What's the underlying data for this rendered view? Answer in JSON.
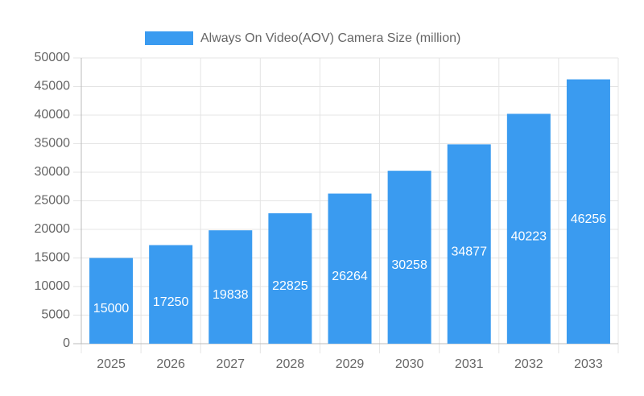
{
  "chart_data": {
    "type": "bar",
    "categories": [
      "2025",
      "2026",
      "2027",
      "2028",
      "2029",
      "2030",
      "2031",
      "2032",
      "2033"
    ],
    "series": [
      {
        "name": "Always On Video(AOV) Camera Size (million)",
        "color": "#3a9bf0",
        "values": [
          15000,
          17250,
          19838,
          22825,
          26264,
          30258,
          34877,
          40223,
          46256
        ]
      }
    ],
    "ylim": [
      0,
      50000
    ],
    "yticks": [
      0,
      5000,
      10000,
      15000,
      20000,
      25000,
      30000,
      35000,
      40000,
      45000,
      50000
    ],
    "grid": true,
    "legend": "top"
  }
}
